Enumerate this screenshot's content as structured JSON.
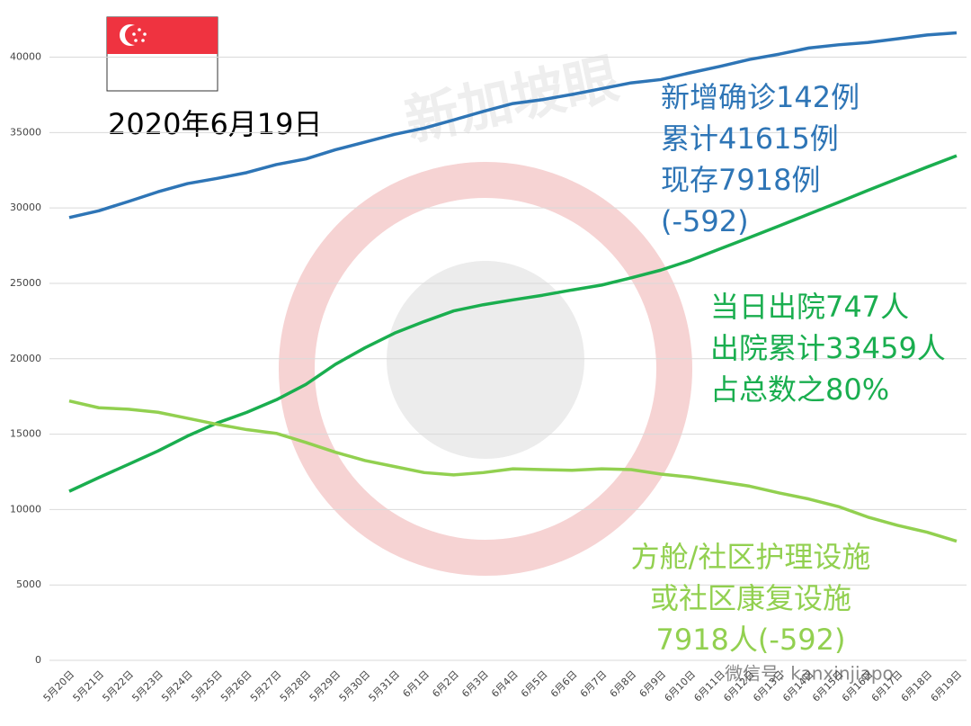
{
  "chart_data": {
    "type": "line",
    "title": "2020年6月19日",
    "categories": [
      "5月20日",
      "5月21日",
      "5月22日",
      "5月23日",
      "5月24日",
      "5月25日",
      "5月26日",
      "5月27日",
      "5月28日",
      "5月29日",
      "5月30日",
      "5月31日",
      "6月1日",
      "6月2日",
      "6月3日",
      "6月4日",
      "6月5日",
      "6月6日",
      "6月7日",
      "6月8日",
      "6月9日",
      "6月10日",
      "6月11日",
      "6月12日",
      "6月13日",
      "6月14日",
      "6月15日",
      "6月16日",
      "6月17日",
      "6月18日",
      "6月19日"
    ],
    "series": [
      {
        "color": "#2e75b6",
        "values": [
          29364,
          29812,
          30426,
          31068,
          31616,
          31960,
          32343,
          32876,
          33249,
          33860,
          34366,
          34884,
          35292,
          35836,
          36405,
          36922,
          37183,
          37527,
          37910,
          38296,
          38514,
          38965,
          39387,
          39850,
          40197,
          40604,
          40818,
          40969,
          41216,
          41473,
          41615
        ]
      },
      {
        "color": "#1aae4f",
        "values": [
          11207,
          12117,
          12995,
          13882,
          14876,
          15738,
          16444,
          17276,
          18294,
          19631,
          20727,
          21699,
          22466,
          23175,
          23582,
          23904,
          24209,
          24559,
          24886,
          25368,
          25877,
          26523,
          27286,
          28040,
          28808,
          29589,
          30366,
          31163,
          31938,
          32712,
          33459
        ]
      },
      {
        "color": "#92d050",
        "values": [
          17200,
          16750,
          16650,
          16450,
          16050,
          15650,
          15300,
          15050,
          14450,
          13800,
          13250,
          12850,
          12450,
          12300,
          12450,
          12700,
          12650,
          12600,
          12700,
          12650,
          12350,
          12150,
          11850,
          11550,
          11100,
          10700,
          10200,
          9500,
          8950,
          8500,
          7900
        ]
      }
    ],
    "ylim": [
      0,
      42000
    ],
    "yticks": [
      0,
      5000,
      10000,
      15000,
      20000,
      25000,
      30000,
      35000,
      40000
    ],
    "grid": true,
    "annotations": [
      {
        "color": "#2e75b6",
        "lines": [
          "新增确诊142例",
          "累计41615例",
          "现存7918例",
          "(-592)"
        ]
      },
      {
        "color": "#1aae4f",
        "lines": [
          "当日出院747人",
          "出院累计33459人",
          "占总数之80%"
        ]
      },
      {
        "color": "#92d050",
        "lines": [
          "方舱/社区护理设施",
          "或社区康复设施",
          "7918人(-592)"
        ]
      }
    ],
    "watermarks": [
      "新加坡眼",
      "微信号: kanxinjiapo"
    ]
  }
}
